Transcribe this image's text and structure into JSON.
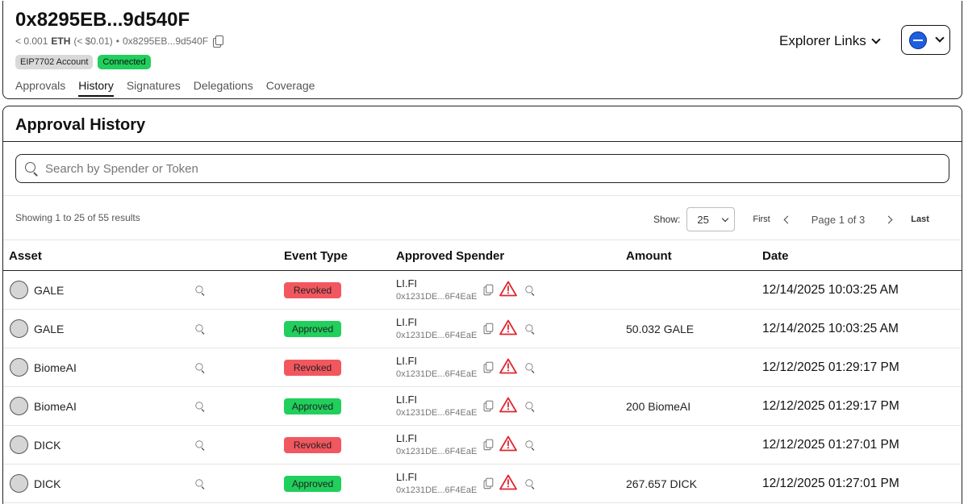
{
  "header": {
    "address_title": "0x8295EB...9d540F",
    "balance_prefix": "< 0.001",
    "balance_unit": "ETH",
    "balance_usd": "(< $0.01)",
    "separator": "•",
    "short_address": "0x8295EB...9d540F",
    "badges": [
      "EIP7702 Account",
      "Connected"
    ],
    "tabs": [
      "Approvals",
      "History",
      "Signatures",
      "Delegations",
      "Coverage"
    ],
    "active_tab": "History",
    "explorer_links_label": "Explorer Links"
  },
  "history": {
    "title": "Approval History",
    "search_placeholder": "Search by Spender or Token",
    "showing_text": "Showing 1 to 25 of 55 results",
    "show_label": "Show:",
    "page_size": "25",
    "first_label": "First",
    "page_info": "Page 1 of 3",
    "last_label": "Last",
    "columns": [
      "Asset",
      "Event Type",
      "Approved Spender",
      "Amount",
      "Date"
    ],
    "rows": [
      {
        "asset": "GALE",
        "event": "Revoked",
        "spender": "LI.FI",
        "spender_addr": "0x1231DE...6F4EaE",
        "amount": "",
        "date": "12/14/2025 10:03:25 AM"
      },
      {
        "asset": "GALE",
        "event": "Approved",
        "spender": "LI.FI",
        "spender_addr": "0x1231DE...6F4EaE",
        "amount": "50.032 GALE",
        "date": "12/14/2025 10:03:25 AM"
      },
      {
        "asset": "BiomeAI",
        "event": "Revoked",
        "spender": "LI.FI",
        "spender_addr": "0x1231DE...6F4EaE",
        "amount": "",
        "date": "12/12/2025 01:29:17 PM"
      },
      {
        "asset": "BiomeAI",
        "event": "Approved",
        "spender": "LI.FI",
        "spender_addr": "0x1231DE...6F4EaE",
        "amount": "200 BiomeAI",
        "date": "12/12/2025 01:29:17 PM"
      },
      {
        "asset": "DICK",
        "event": "Revoked",
        "spender": "LI.FI",
        "spender_addr": "0x1231DE...6F4EaE",
        "amount": "",
        "date": "12/12/2025 01:27:01 PM"
      },
      {
        "asset": "DICK",
        "event": "Approved",
        "spender": "LI.FI",
        "spender_addr": "0x1231DE...6F4EaE",
        "amount": "267.657 DICK",
        "date": "12/12/2025 01:27:01 PM"
      }
    ]
  },
  "colors": {
    "revoked": "#f2575f",
    "approved": "#20cf5c",
    "network_icon": "#1e5fe0",
    "warning": "#e0262f"
  },
  "icons": {
    "copy": "copy-icon",
    "search": "search-icon",
    "warning": "warning-icon",
    "network": "network-icon",
    "chevron": "chevron-down-icon"
  }
}
